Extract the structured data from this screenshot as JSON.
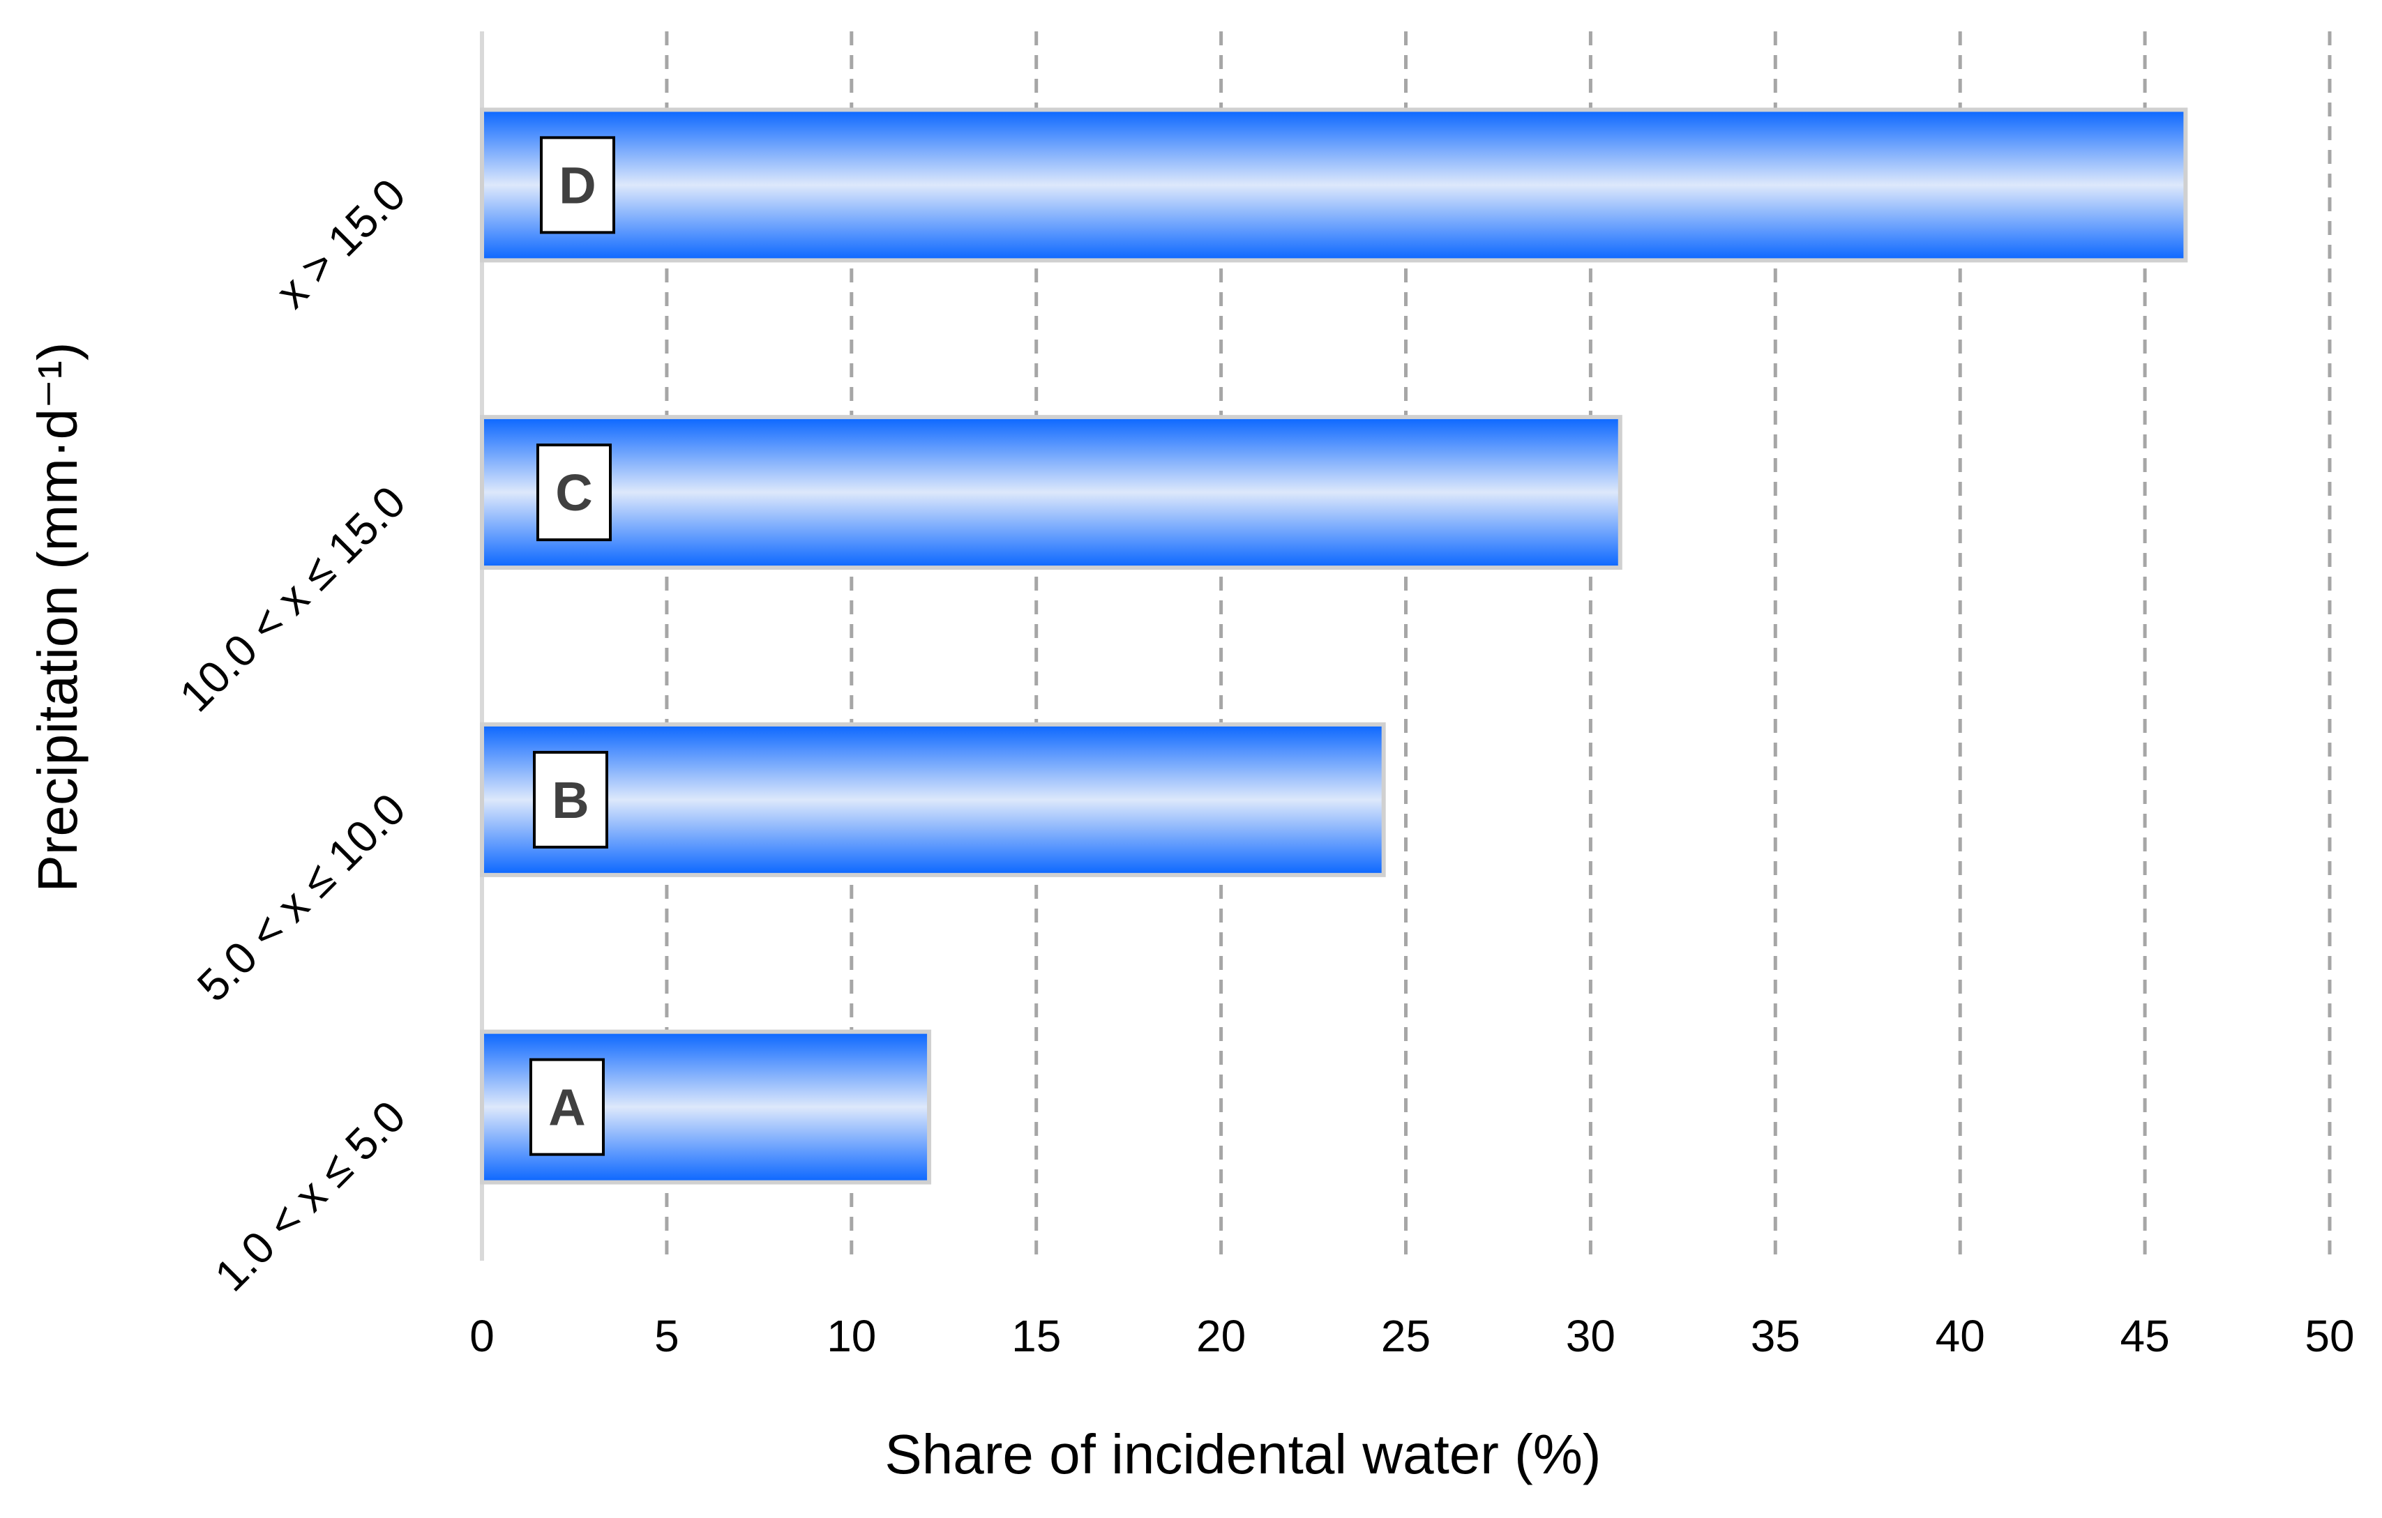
{
  "chart_data": {
    "type": "bar",
    "orientation": "horizontal",
    "categories": [
      "1.0 < x ≤ 5.0",
      "5.0 < x ≤ 10.0",
      "10.0 < x ≤ 15.0",
      "x > 15.0"
    ],
    "values": [
      12.1,
      24.4,
      30.8,
      46.1
    ],
    "bar_labels": [
      "A",
      "B",
      "C",
      "D"
    ],
    "xlabel": "Share of incidental water (%)",
    "ylabel": "Precipitation (mm·d⁻¹)",
    "xlim": [
      0,
      50
    ],
    "xticks": [
      0,
      5,
      10,
      15,
      20,
      25,
      30,
      35,
      40,
      45,
      50
    ],
    "grid": "vertical dashed",
    "colors": {
      "bar_edge": "#0a66ff",
      "bar_center": "#dde8fb",
      "bar_outline": "#d0d0d0",
      "grid": "#a6a6a6",
      "axis": "#d9d9d9"
    }
  }
}
